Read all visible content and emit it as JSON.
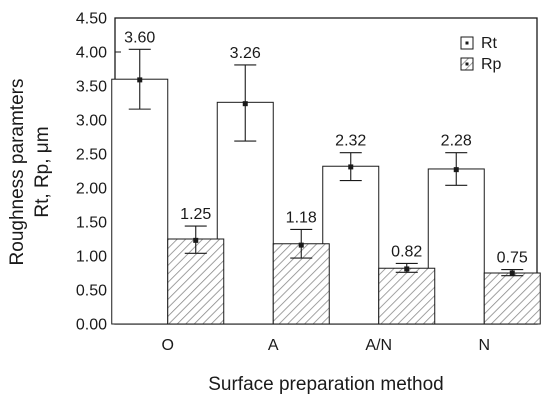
{
  "chart_data": {
    "type": "bar",
    "title": "",
    "xlabel": "Surface preparation method",
    "ylabel_lines": [
      "Roughness paramters",
      "Rt, Rp, μm"
    ],
    "categories": [
      "O",
      "A",
      "A/N",
      "N"
    ],
    "ylim": [
      0,
      4.5
    ],
    "yticks": [
      0.0,
      0.5,
      1.0,
      1.5,
      2.0,
      2.5,
      3.0,
      3.5,
      4.0,
      4.5
    ],
    "ytick_labels": [
      "0.00",
      "0.50",
      "1.00",
      "1.50",
      "2.00",
      "2.50",
      "3.00",
      "3.50",
      "4.00",
      "4.50"
    ],
    "grid": false,
    "legend_position": "top-right",
    "series": [
      {
        "name": "Rt",
        "fill": "#ffffff",
        "pattern": "none",
        "values": [
          3.6,
          3.26,
          2.32,
          2.28
        ],
        "value_labels": [
          "3.60",
          "3.26",
          "2.32",
          "2.28"
        ],
        "means": [
          3.59,
          3.24,
          2.31,
          2.27
        ],
        "err_low": [
          3.16,
          2.69,
          2.11,
          2.04
        ],
        "err_high": [
          4.04,
          3.81,
          2.52,
          2.52
        ]
      },
      {
        "name": "Rp",
        "fill": "#ffffff",
        "pattern": "diagonal-hatch",
        "values": [
          1.25,
          1.18,
          0.82,
          0.75
        ],
        "value_labels": [
          "1.25",
          "1.18",
          "0.82",
          "0.75"
        ],
        "means": [
          1.23,
          1.16,
          0.81,
          0.75
        ],
        "err_low": [
          1.04,
          0.97,
          0.76,
          0.71
        ],
        "err_high": [
          1.44,
          1.39,
          0.89,
          0.8
        ]
      }
    ]
  }
}
